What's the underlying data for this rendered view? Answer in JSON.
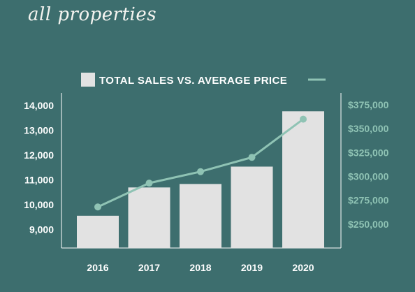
{
  "header": {
    "title": "all properties"
  },
  "colors": {
    "background": "#3d6e6e",
    "bar": "#e2e2e2",
    "line": "#8fc3b4",
    "left_tick": "#ffffff",
    "right_tick": "#8fc3b4"
  },
  "chart_data": {
    "type": "bar",
    "title": "",
    "legend": {
      "bar_label": "TOTAL SALES",
      "separator": "VS.",
      "line_label": "AVERAGE PRICE",
      "text": "TOTAL SALES VS. AVERAGE PRICE",
      "placement": "top-center"
    },
    "categories": [
      "2016",
      "2017",
      "2018",
      "2019",
      "2020"
    ],
    "series": [
      {
        "name": "TOTAL SALES",
        "type": "bar",
        "axis": "left",
        "values": [
          9550,
          10690,
          10830,
          11530,
          13760
        ]
      },
      {
        "name": "AVERAGE PRICE",
        "type": "line",
        "axis": "right",
        "values": [
          268000,
          293000,
          305000,
          320000,
          360000
        ]
      }
    ],
    "y_left": {
      "ticks": [
        9000,
        10000,
        11000,
        12000,
        13000,
        14000
      ],
      "tick_labels": [
        "9,000",
        "10,000",
        "11,000",
        "12,000",
        "13,000",
        "14,000"
      ],
      "range": [
        8250,
        14500
      ]
    },
    "y_right": {
      "ticks": [
        250000,
        275000,
        300000,
        325000,
        350000,
        375000
      ],
      "tick_labels": [
        "$250,000",
        "$275,000",
        "$300,000",
        "$325,000",
        "$350,000",
        "$375,000"
      ],
      "range": [
        225000,
        387500
      ]
    },
    "grid": false
  }
}
